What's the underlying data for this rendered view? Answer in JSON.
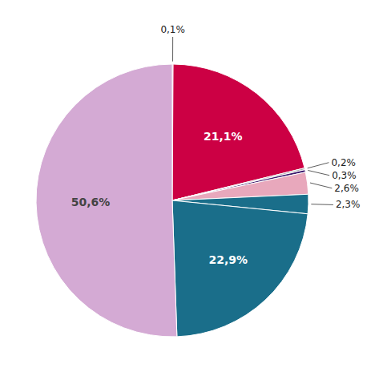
{
  "chart_data": {
    "type": "pie",
    "values": [
      0.1,
      21.1,
      0.2,
      0.3,
      2.6,
      2.3,
      22.9,
      50.6
    ],
    "value_labels": [
      "0,1%",
      "21,1%",
      "0,2%",
      "0,3%",
      "2,6%",
      "2,3%",
      "22,9%",
      "50,6%"
    ],
    "colors": [
      "#cc0044",
      "#cc0044",
      "#aaaaaa",
      "#3d1a6e",
      "#e8a8bc",
      "#1a6e8a",
      "#1a6e8a",
      "#d4aad4"
    ],
    "data_labels": true
  }
}
